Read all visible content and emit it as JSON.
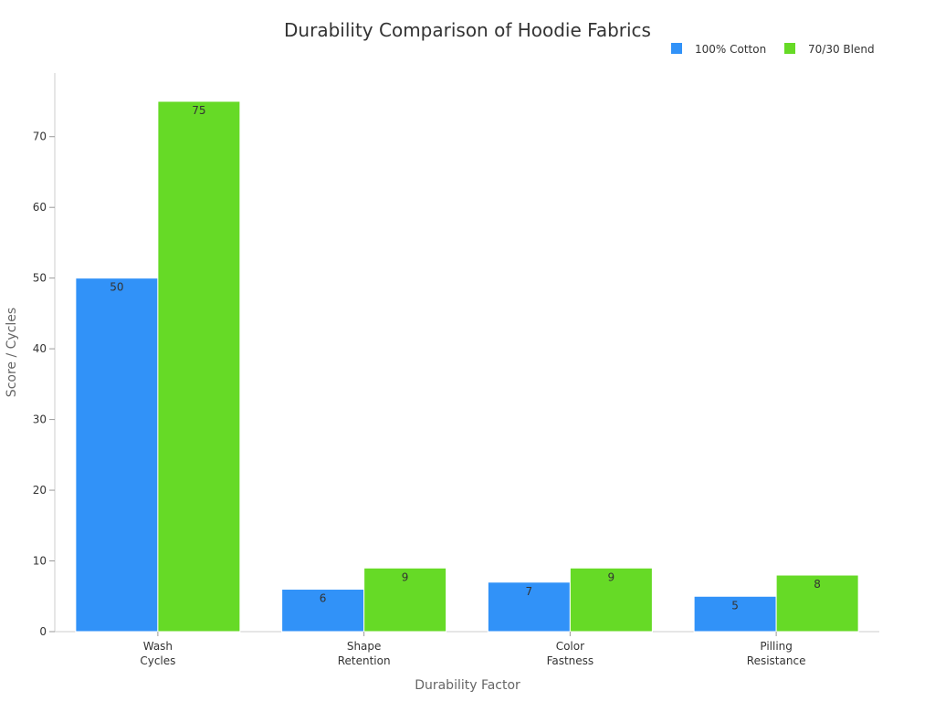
{
  "chart_data": {
    "type": "bar",
    "title": "Durability Comparison of Hoodie Fabrics",
    "xlabel": "Durability Factor",
    "ylabel": "Score / Cycles",
    "categories": [
      [
        "Wash",
        "Cycles"
      ],
      [
        "Shape",
        "Retention"
      ],
      [
        "Color",
        "Fastness"
      ],
      [
        "Pilling",
        "Resistance"
      ]
    ],
    "series": [
      {
        "name": "100% Cotton",
        "color": "#3192f8",
        "values": [
          50,
          6,
          7,
          5
        ]
      },
      {
        "name": "70/30 Blend",
        "color": "#66da26",
        "values": [
          75,
          9,
          9,
          8
        ]
      }
    ],
    "ylim": [
      0,
      79
    ],
    "yticks": [
      0,
      10,
      20,
      30,
      40,
      50,
      60,
      70
    ],
    "grid": false,
    "legend": "top-right"
  }
}
